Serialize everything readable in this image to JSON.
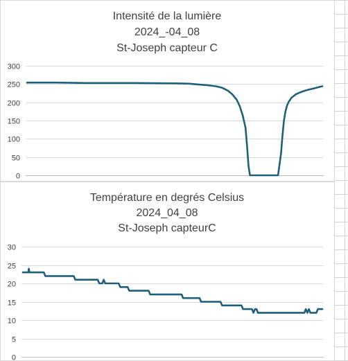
{
  "sheet": {
    "grid_color": "#d4d4d4"
  },
  "series_color": "#1f5f7a",
  "chart_data": [
    {
      "type": "line",
      "title_lines": [
        "Intensité de la lumière",
        "2024_-04_08",
        "St-Joseph capteur C"
      ],
      "xlabel": "",
      "ylabel": "",
      "ylim": [
        0,
        300
      ],
      "yticks": [
        0,
        50,
        100,
        150,
        200,
        250,
        300
      ],
      "grid": true,
      "legend": "none",
      "series": [
        {
          "x": [
            0,
            0.04,
            0.1,
            0.2,
            0.36,
            0.5,
            0.55,
            0.58,
            0.61,
            0.64,
            0.66,
            0.68,
            0.695,
            0.71,
            0.72,
            0.73,
            0.74,
            0.745,
            0.75,
            0.755,
            0.77,
            0.84,
            0.85,
            0.86,
            0.865,
            0.87,
            0.875,
            0.88,
            0.885,
            0.895,
            0.91,
            0.93,
            0.95,
            0.97,
            0.99,
            1.0
          ],
          "values": [
            254,
            254,
            254,
            253,
            253,
            252,
            251,
            249,
            247,
            244,
            240,
            232,
            222,
            207,
            190,
            165,
            130,
            80,
            25,
            0,
            0,
            0,
            0,
            60,
            110,
            150,
            175,
            190,
            200,
            212,
            222,
            229,
            234,
            238,
            242,
            244
          ]
        }
      ]
    },
    {
      "type": "line",
      "title_lines": [
        "Température en degrés Celsius",
        "2024_04_08",
        "St-Joseph capteurC"
      ],
      "xlabel": "",
      "ylabel": "",
      "ylim": [
        0,
        30
      ],
      "yticks": [
        0,
        5,
        10,
        15,
        20,
        25,
        30
      ],
      "grid": true,
      "legend": "none",
      "series": [
        {
          "x": [
            0,
            0.018,
            0.02,
            0.022,
            0.07,
            0.075,
            0.17,
            0.175,
            0.25,
            0.255,
            0.265,
            0.27,
            0.275,
            0.32,
            0.325,
            0.35,
            0.355,
            0.42,
            0.425,
            0.53,
            0.535,
            0.59,
            0.595,
            0.66,
            0.665,
            0.73,
            0.735,
            0.765,
            0.77,
            0.775,
            0.78,
            0.785,
            0.79,
            0.94,
            0.945,
            0.95,
            0.955,
            0.96,
            0.965,
            0.98,
            0.985,
            1.0
          ],
          "values": [
            23,
            23,
            24,
            23,
            23,
            22,
            22,
            21,
            21,
            20,
            20,
            21,
            20,
            20,
            19,
            19,
            18,
            18,
            17,
            17,
            16,
            16,
            15,
            15,
            14,
            14,
            13,
            13,
            12,
            13,
            13,
            12,
            12,
            12,
            13,
            12,
            13,
            12,
            12,
            12,
            13,
            13
          ]
        }
      ]
    }
  ]
}
